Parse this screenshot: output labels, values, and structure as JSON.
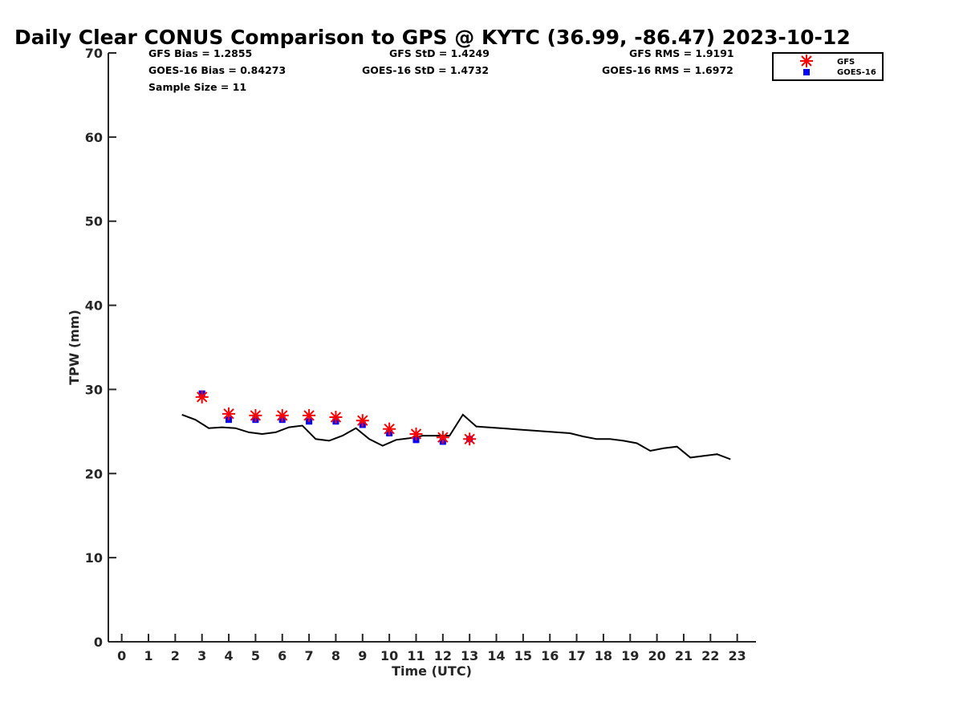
{
  "chart_data": {
    "type": "scatter",
    "title": "Daily Clear CONUS Comparison to GPS @ KYTC (36.99, -86.47) 2023-10-12",
    "xlabel": "Time (UTC)",
    "ylabel": "TPW (mm)",
    "xlim": [
      -0.5,
      23.7
    ],
    "ylim": [
      0,
      70
    ],
    "xticks": [
      0,
      1,
      2,
      3,
      4,
      5,
      6,
      7,
      8,
      9,
      10,
      11,
      12,
      13,
      14,
      15,
      16,
      17,
      18,
      19,
      20,
      21,
      22,
      23
    ],
    "yticks": [
      0,
      10,
      20,
      30,
      40,
      50,
      60,
      70
    ],
    "grid": false,
    "legend_position": "top-right",
    "stats": {
      "gfs_bias": "GFS Bias = 1.2855",
      "goes_bias": "GOES-16 Bias = 0.84273",
      "sample_size": "Sample Size = 11",
      "gfs_std": "GFS StD = 1.4249",
      "goes_std": "GOES-16 StD = 1.4732",
      "gfs_rms": "GFS RMS = 1.9191",
      "goes_rms": "GOES-16 RMS = 1.6972"
    },
    "series": [
      {
        "name": "GFS",
        "kind": "scatter",
        "marker": "asterisk",
        "color": "#ff0000",
        "x": [
          3,
          4,
          5,
          6,
          7,
          8,
          9,
          10,
          11,
          12,
          13
        ],
        "y": [
          29.1,
          27.1,
          26.9,
          26.9,
          26.9,
          26.7,
          26.3,
          25.3,
          24.7,
          24.3,
          24.1
        ]
      },
      {
        "name": "GOES-16",
        "kind": "scatter",
        "marker": "square",
        "color": "#0000ff",
        "x": [
          3,
          4,
          5,
          6,
          7,
          8,
          9,
          10,
          11,
          12,
          13
        ],
        "y": [
          29.5,
          26.4,
          26.4,
          26.4,
          26.2,
          26.2,
          25.8,
          24.8,
          24.0,
          23.8,
          24.1
        ]
      },
      {
        "kind": "line",
        "color": "#000000",
        "x": [
          2.25,
          2.75,
          3.25,
          3.75,
          4.25,
          4.75,
          5.25,
          5.75,
          6.25,
          6.75,
          7.25,
          7.75,
          8.25,
          8.75,
          9.25,
          9.75,
          10.25,
          10.75,
          11.25,
          11.75,
          12.25,
          12.75,
          13.25,
          16.75,
          17.25,
          17.75,
          18.25,
          18.75,
          19.25,
          19.75,
          20.25,
          20.75,
          21.25,
          21.75,
          22.25,
          22.75
        ],
        "y": [
          27.0,
          26.4,
          25.4,
          25.5,
          25.4,
          24.9,
          24.7,
          24.9,
          25.5,
          25.7,
          24.1,
          23.9,
          24.5,
          25.4,
          24.1,
          23.3,
          24.0,
          24.2,
          24.5,
          24.5,
          24.5,
          27.0,
          25.6,
          24.8,
          24.4,
          24.1,
          24.1,
          23.9,
          23.6,
          22.7,
          23.0,
          23.2,
          21.9,
          22.1,
          22.3,
          21.7
        ]
      }
    ]
  }
}
